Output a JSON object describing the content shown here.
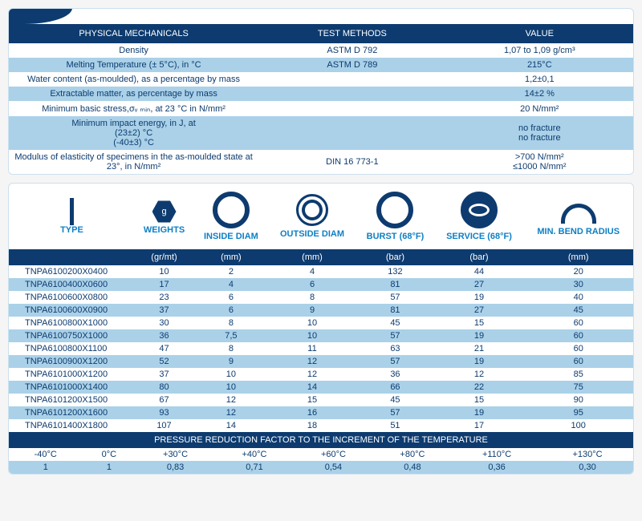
{
  "physical": {
    "headers": [
      "PHYSICAL MECHANICALS",
      "TEST METHODS",
      "VALUE"
    ],
    "rows": [
      {
        "p": "Density",
        "t": "ASTM D 792",
        "v": "1,07 to 1,09 g/cm³",
        "bg": "row-white"
      },
      {
        "p": "Melting Temperature (± 5°C), in °C",
        "t": "ASTM D 789",
        "v": "215°C",
        "bg": "row-blue"
      },
      {
        "p": "Water content (as-moulded), as a percentage by mass",
        "t": "",
        "v": "1,2±0,1",
        "bg": "row-white"
      },
      {
        "p": "Extractable matter, as percentage by mass",
        "t": "",
        "v": "14±2 %",
        "bg": "row-blue"
      },
      {
        "p": "Minimum basic stress,σᵥ ₘᵢₙ, at 23 °C in N/mm²",
        "t": "",
        "v": "20 N/mm²",
        "bg": "row-white"
      },
      {
        "p": "Minimum impact energy, in J, at\n(23±2) °C\n(-40±3) °C",
        "t": "",
        "v": "no fracture\nno fracture",
        "bg": "row-blue"
      },
      {
        "p": "Modulus of elasticity of specimens in the as-moulded state at 23°, in N/mm²",
        "t": "DIN 16 773-1",
        "v": ">700 N/mm²\n≤1000 N/mm²",
        "bg": "row-white"
      }
    ]
  },
  "iconLabels": [
    "TYPE",
    "WEIGHTS",
    "INSIDE DIAM",
    "OUTSIDE DIAM",
    "BURST (68°F)",
    "SERVICE (68°F)",
    "MIN. BEND RADIUS"
  ],
  "units": [
    "",
    "(gr/mt)",
    "(mm)",
    "(mm)",
    "(bar)",
    "(bar)",
    "(mm)"
  ],
  "specs": [
    [
      "TNPA6100200X0400",
      "10",
      "2",
      "4",
      "132",
      "44",
      "20"
    ],
    [
      "TNPA6100400X0600",
      "17",
      "4",
      "6",
      "81",
      "27",
      "30"
    ],
    [
      "TNPA6100600X0800",
      "23",
      "6",
      "8",
      "57",
      "19",
      "40"
    ],
    [
      "TNPA6100600X0900",
      "37",
      "6",
      "9",
      "81",
      "27",
      "45"
    ],
    [
      "TNPA6100800X1000",
      "30",
      "8",
      "10",
      "45",
      "15",
      "60"
    ],
    [
      "TNPA6100750X1000",
      "36",
      "7,5",
      "10",
      "57",
      "19",
      "60"
    ],
    [
      "TNPA6100800X1100",
      "47",
      "8",
      "11",
      "63",
      "21",
      "60"
    ],
    [
      "TNPA6100900X1200",
      "52",
      "9",
      "12",
      "57",
      "19",
      "60"
    ],
    [
      "TNPA6101000X1200",
      "37",
      "10",
      "12",
      "36",
      "12",
      "85"
    ],
    [
      "TNPA6101000X1400",
      "80",
      "10",
      "14",
      "66",
      "22",
      "75"
    ],
    [
      "TNPA6101200X1500",
      "67",
      "12",
      "15",
      "45",
      "15",
      "90"
    ],
    [
      "TNPA6101200X1600",
      "93",
      "12",
      "16",
      "57",
      "19",
      "95"
    ],
    [
      "TNPA6101400X1800",
      "107",
      "14",
      "18",
      "51",
      "17",
      "100"
    ]
  ],
  "pressureTitle": "PRESSURE REDUCTION FACTOR TO THE INCREMENT OF THE TEMPERATURE",
  "tempHdr": [
    "-40°C",
    "0°C",
    "+30°C",
    "+40°C",
    "+60°C",
    "+80°C",
    "+110°C",
    "+130°C"
  ],
  "tempVal": [
    "1",
    "1",
    "0,83",
    "0,71",
    "0,54",
    "0,48",
    "0,36",
    "0,30"
  ]
}
